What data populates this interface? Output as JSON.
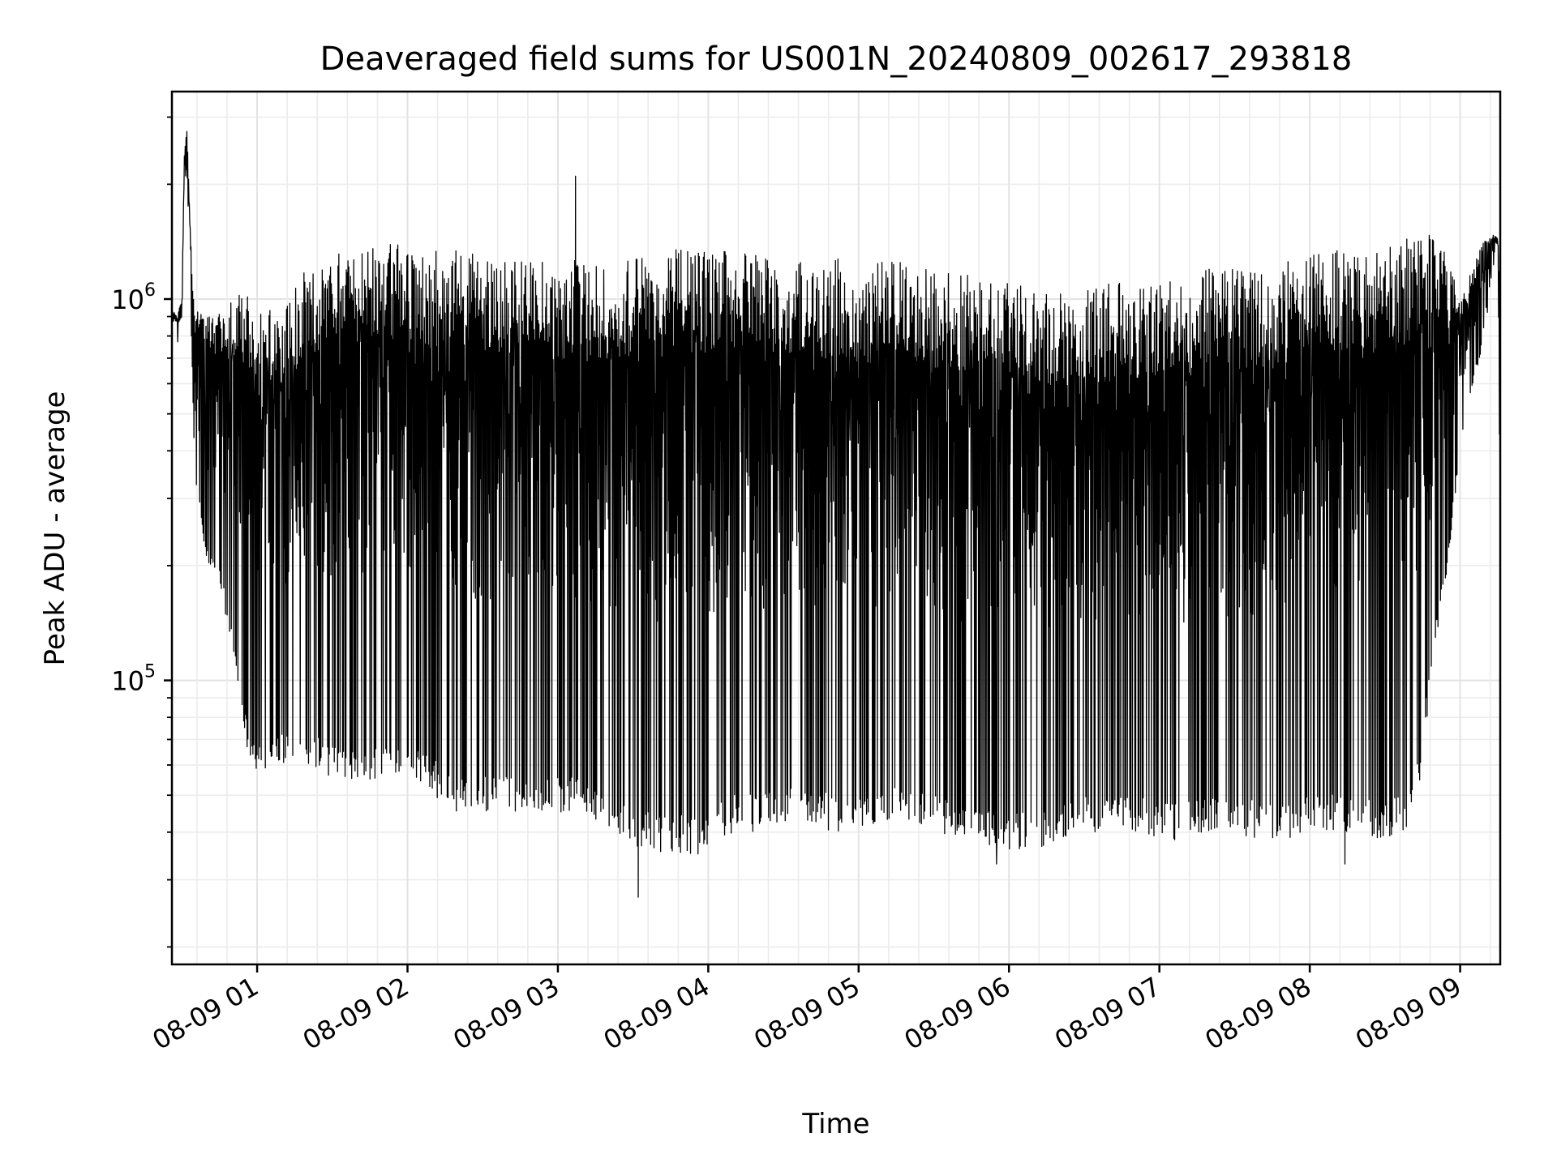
{
  "chart_data": {
    "type": "line",
    "title": "Deaveraged field sums for US001N_20240809_002617_293818",
    "xlabel": "Time",
    "ylabel": "Peak ADU - average",
    "yscale": "log",
    "ylim": [
      18000,
      3500000
    ],
    "xlim": [
      "2024-08-09 00:26",
      "2024-08-09 09:16"
    ],
    "grid": true,
    "line_color": "#000000",
    "x_tick_labels": [
      "08-09 01",
      "08-09 02",
      "08-09 03",
      "08-09 04",
      "08-09 05",
      "08-09 06",
      "08-09 07",
      "08-09 08",
      "08-09 09"
    ],
    "x_tick_times": [
      "2024-08-09 01:00",
      "2024-08-09 02:00",
      "2024-08-09 03:00",
      "2024-08-09 04:00",
      "2024-08-09 05:00",
      "2024-08-09 06:00",
      "2024-08-09 07:00",
      "2024-08-09 08:00",
      "2024-08-09 09:00"
    ],
    "y_tick_labels": [
      {
        "value": 100000,
        "base": "10",
        "exp": "5"
      },
      {
        "value": 1000000,
        "base": "10",
        "exp": "6"
      }
    ],
    "series": [
      {
        "x": [
          "2024-08-09 00:26",
          "2024-08-09 00:28",
          "2024-08-09 00:30",
          "2024-08-09 00:31",
          "2024-08-09 00:32",
          "2024-08-09 00:33",
          "2024-08-09 00:34",
          "2024-08-09 00:35",
          "2024-08-09 00:36",
          "2024-08-09 00:37",
          "2024-08-09 00:40",
          "2024-08-09 00:45",
          "2024-08-09 00:50",
          "2024-08-09 00:55",
          "2024-08-09 01:00",
          "2024-08-09 01:10",
          "2024-08-09 01:20",
          "2024-08-09 01:30",
          "2024-08-09 01:40",
          "2024-08-09 01:50",
          "2024-08-09 02:00",
          "2024-08-09 02:10",
          "2024-08-09 02:20",
          "2024-08-09 02:30",
          "2024-08-09 02:40",
          "2024-08-09 02:50",
          "2024-08-09 03:00",
          "2024-08-09 03:07",
          "2024-08-09 03:10",
          "2024-08-09 03:20",
          "2024-08-09 03:32",
          "2024-08-09 03:40",
          "2024-08-09 03:50",
          "2024-08-09 04:00",
          "2024-08-09 04:10",
          "2024-08-09 04:20",
          "2024-08-09 04:30",
          "2024-08-09 04:40",
          "2024-08-09 04:50",
          "2024-08-09 05:00",
          "2024-08-09 05:10",
          "2024-08-09 05:20",
          "2024-08-09 05:30",
          "2024-08-09 05:40",
          "2024-08-09 05:50",
          "2024-08-09 06:00",
          "2024-08-09 06:10",
          "2024-08-09 06:20",
          "2024-08-09 06:30",
          "2024-08-09 06:40",
          "2024-08-09 06:50",
          "2024-08-09 07:00",
          "2024-08-09 07:10",
          "2024-08-09 07:20",
          "2024-08-09 07:30",
          "2024-08-09 07:40",
          "2024-08-09 07:50",
          "2024-08-09 08:00",
          "2024-08-09 08:10",
          "2024-08-09 08:20",
          "2024-08-09 08:30",
          "2024-08-09 08:40",
          "2024-08-09 08:45",
          "2024-08-09 08:50",
          "2024-08-09 08:55",
          "2024-08-09 09:00",
          "2024-08-09 09:05",
          "2024-08-09 09:08",
          "2024-08-09 09:10",
          "2024-08-09 09:13",
          "2024-08-09 09:15",
          "2024-08-09 09:16"
        ],
        "upper": [
          950000,
          900000,
          1000000,
          2500000,
          2800000,
          1800000,
          1200000,
          1000000,
          950000,
          950000,
          900000,
          950000,
          1000000,
          1050000,
          1000000,
          1000000,
          1200000,
          1300000,
          1400000,
          1450000,
          1400000,
          1350000,
          1350000,
          1300000,
          1300000,
          1250000,
          1250000,
          1300000,
          1250000,
          1250000,
          1300000,
          1350000,
          1400000,
          1400000,
          1400000,
          1350000,
          1300000,
          1300000,
          1300000,
          1250000,
          1250000,
          1250000,
          1200000,
          1200000,
          1150000,
          1100000,
          1100000,
          1050000,
          1050000,
          1100000,
          1100000,
          1150000,
          1150000,
          1200000,
          1200000,
          1200000,
          1250000,
          1300000,
          1350000,
          1350000,
          1350000,
          1450000,
          1500000,
          1450000,
          1300000,
          1000000,
          1200000,
          1350000,
          1450000,
          1500000,
          1450000,
          1400000
        ],
        "lower": [
          850000,
          850000,
          900000,
          2000000,
          2200000,
          1300000,
          700000,
          350000,
          300000,
          280000,
          200000,
          180000,
          120000,
          70000,
          55000,
          60000,
          60000,
          55000,
          55000,
          55000,
          55000,
          50000,
          45000,
          45000,
          45000,
          45000,
          45000,
          45000,
          45000,
          40000,
          36000,
          35000,
          35000,
          35000,
          40000,
          40000,
          42000,
          42000,
          40000,
          40000,
          42000,
          42000,
          40000,
          38000,
          37000,
          36000,
          36000,
          38000,
          40000,
          40000,
          40000,
          38000,
          38000,
          40000,
          40000,
          38000,
          38000,
          40000,
          40000,
          40000,
          38000,
          40000,
          60000,
          120000,
          200000,
          400000,
          600000,
          700000,
          900000,
          1200000,
          1300000,
          20000
        ],
        "spikes": [
          {
            "x": "2024-08-09 03:07",
            "y": 2100000
          },
          {
            "x": "2024-08-09 03:32",
            "y": 27000
          },
          {
            "x": "2024-08-09 05:55",
            "y": 33000
          },
          {
            "x": "2024-08-09 08:14",
            "y": 33000
          }
        ]
      }
    ]
  }
}
